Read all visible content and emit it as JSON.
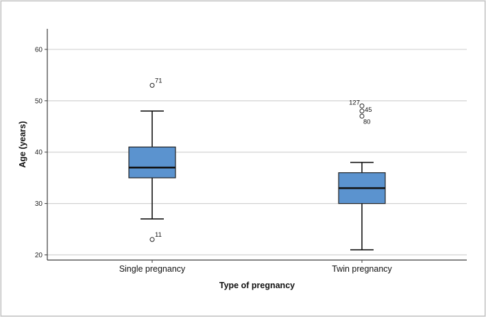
{
  "chart_data": {
    "type": "boxplot",
    "title": "",
    "xlabel": "Type of pregnancy",
    "ylabel": "Age (years)",
    "ylim": [
      19,
      64
    ],
    "yticks": [
      20,
      30,
      40,
      50,
      60
    ],
    "grid": true,
    "colors": {
      "box": "#5b93cf",
      "grid": "#d2d2d2",
      "axis": "#3a3a3a"
    },
    "groups": [
      {
        "name": "Single pregnancy",
        "whisker_low": 27,
        "q1": 35,
        "median": 37,
        "q3": 41,
        "whisker_high": 48,
        "outliers": [
          {
            "value": 53,
            "label": "71"
          },
          {
            "value": 23,
            "label": "11"
          }
        ]
      },
      {
        "name": "Twin pregnancy",
        "whisker_low": 21,
        "q1": 30,
        "median": 33,
        "q3": 36,
        "whisker_high": 38,
        "outliers": [
          {
            "value": 49,
            "label": "127"
          },
          {
            "value": 48,
            "label": "45"
          },
          {
            "value": 47,
            "label": "80"
          }
        ]
      }
    ]
  }
}
